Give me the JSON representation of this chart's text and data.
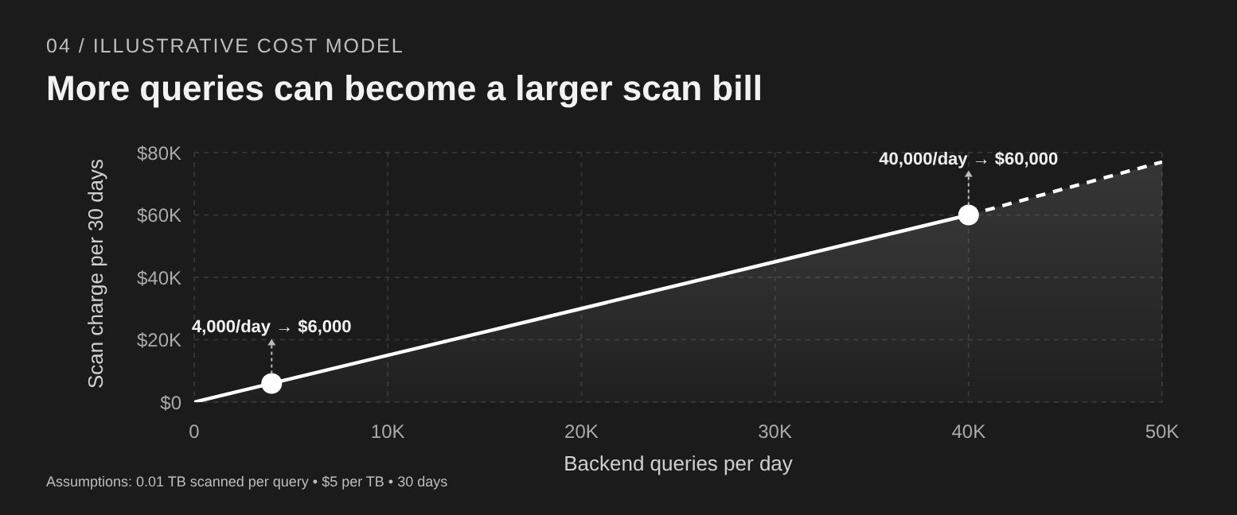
{
  "chart_data": {
    "type": "area",
    "subtitle": "04 / ILLUSTRATIVE COST MODEL",
    "title": "More queries can become a larger scan bill",
    "xlabel": "Backend queries per day",
    "ylabel": "Scan charge per 30 days",
    "xlim": [
      0,
      50000
    ],
    "xticks": [
      {
        "value": 0,
        "label": "0"
      },
      {
        "value": 10000,
        "label": "10K"
      },
      {
        "value": 20000,
        "label": "20K"
      },
      {
        "value": 30000,
        "label": "30K"
      },
      {
        "value": 40000,
        "label": "40K"
      },
      {
        "value": 50000,
        "label": "50K"
      }
    ],
    "ylim": [
      0,
      80000
    ],
    "yticks": [
      {
        "value": 0,
        "label": "$0"
      },
      {
        "value": 20000,
        "label": "$20K"
      },
      {
        "value": 40000,
        "label": "$40K"
      },
      {
        "value": 60000,
        "label": "$60K"
      },
      {
        "value": 80000,
        "label": "$80K"
      }
    ],
    "grid": true,
    "legend": false,
    "series": [
      {
        "color": "#ffffff",
        "line_style": "solid",
        "x": [
          0,
          40000
        ],
        "values": [
          0,
          60000
        ]
      },
      {
        "color": "#ffffff",
        "line_style": "dashed",
        "x": [
          40000,
          50000
        ],
        "values": [
          60000,
          77000
        ]
      },
      {
        "type": "scatter",
        "color": "#ffffff",
        "marker": "circle",
        "x": [
          4000,
          40000
        ],
        "values": [
          6000,
          60000
        ]
      }
    ],
    "annotations": [
      {
        "text": "4,000/day → $6,000",
        "x": 4000,
        "y": 6000
      },
      {
        "text": "40,000/day → $60,000",
        "x": 40000,
        "y": 60000
      },
      "Assumptions: 0.01 TB scanned per query • $5 per TB • 30 days"
    ]
  }
}
